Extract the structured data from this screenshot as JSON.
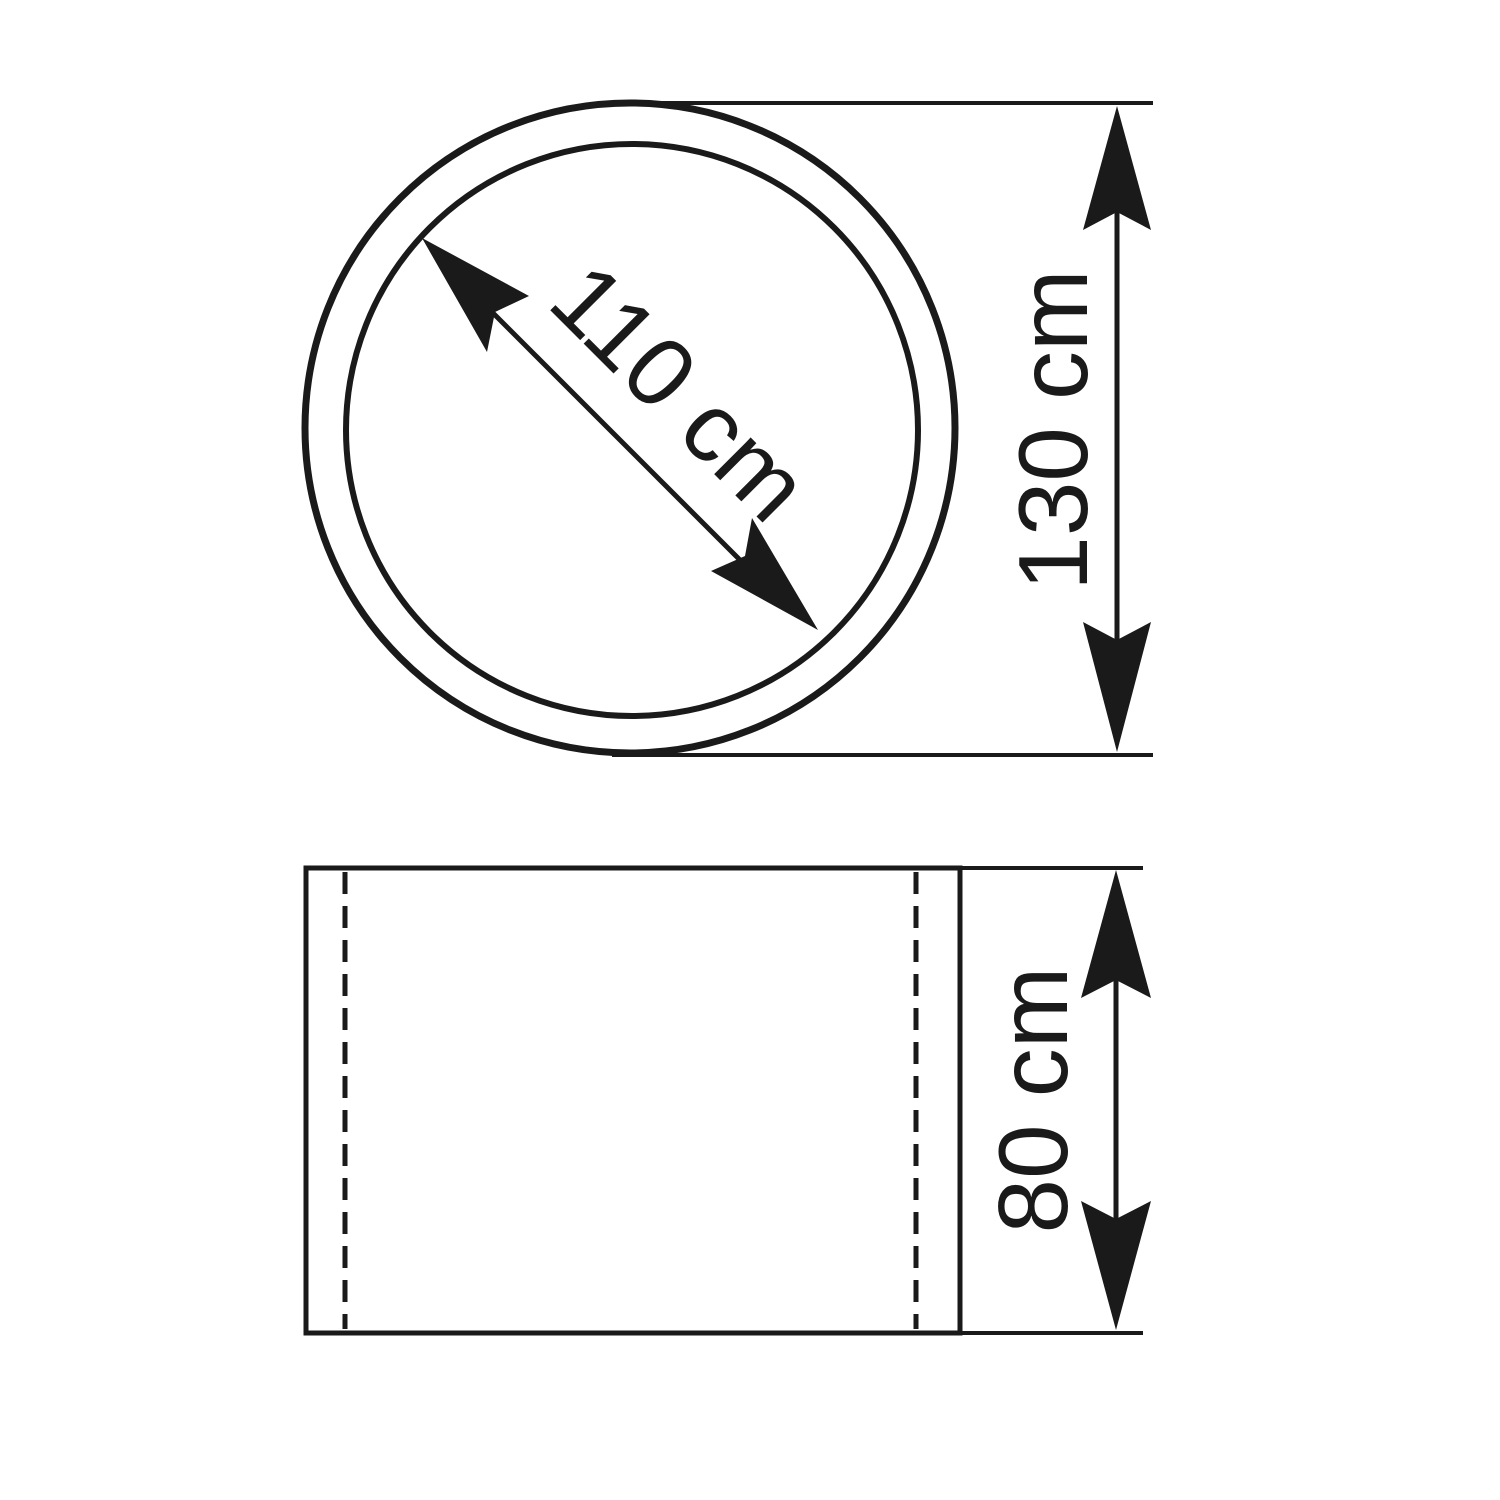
{
  "top_view": {
    "inner_diameter_label": "110 cm",
    "outer_diameter_label": "130 cm"
  },
  "side_view": {
    "height_label": "80 cm"
  },
  "colors": {
    "line": "#1a1a1a",
    "background": "#ffffff"
  }
}
